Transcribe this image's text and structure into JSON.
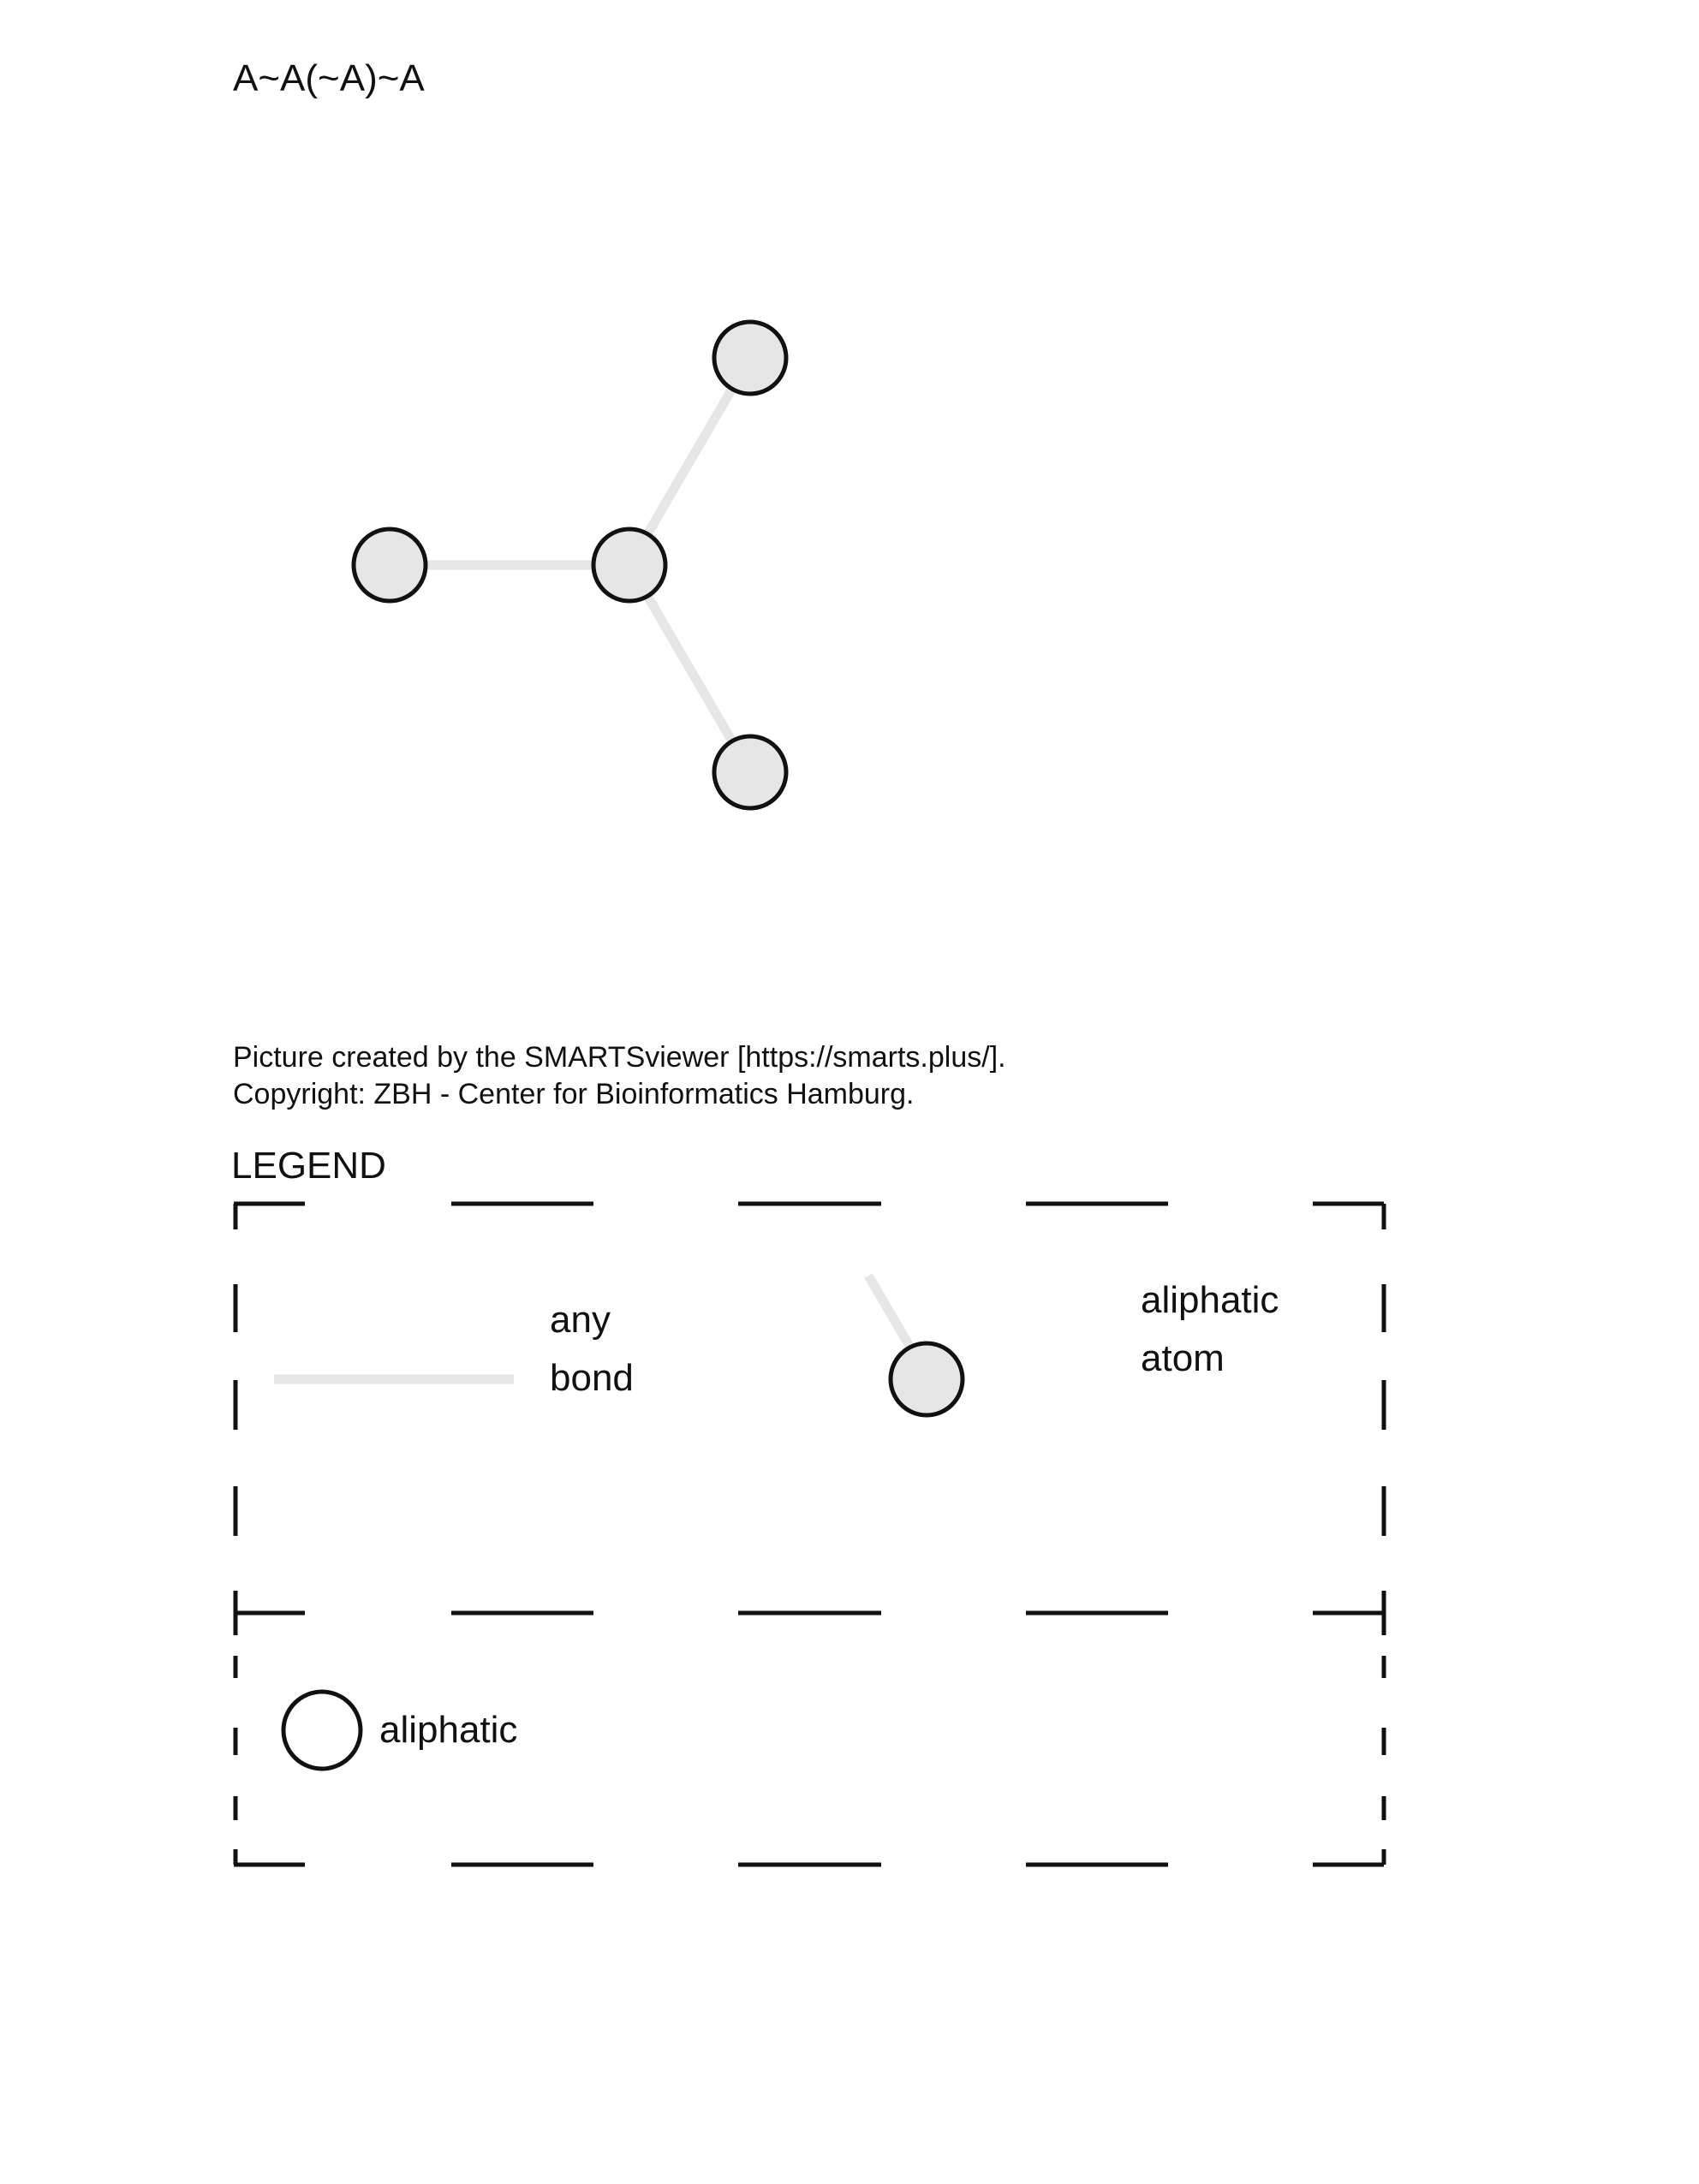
{
  "smarts": "A~A(~A)~A",
  "credit": {
    "line1": "Picture created by the SMARTSviewer [https://smarts.plus/].",
    "line2": "Copyright: ZBH - Center for Bioinformatics Hamburg."
  },
  "legend": {
    "title": "LEGEND",
    "bond": {
      "line1": "any",
      "line2": "bond"
    },
    "atom": {
      "line1": "aliphatic",
      "line2": "atom"
    },
    "ring": {
      "label": "aliphatic"
    }
  },
  "colors": {
    "atom_fill": "#e6e6e6",
    "atom_stroke": "#111111",
    "bond": "#e6e6e6"
  }
}
